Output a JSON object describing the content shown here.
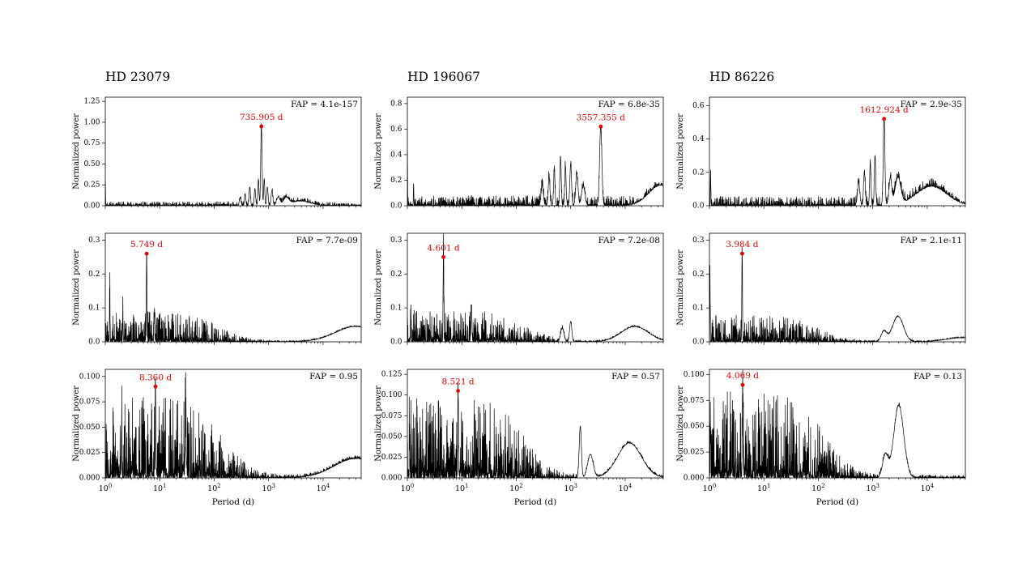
{
  "figure": {
    "ylabel": "Normalized power",
    "xlabel": "Period (d)",
    "x_tick_exponents": [
      0,
      1,
      2,
      3,
      4
    ],
    "xlim_log10": [
      0,
      4.7
    ],
    "colors": {
      "curve": "#000000",
      "peak": "#e60000",
      "background": "#ffffff",
      "text": "#000000"
    }
  },
  "chart_data": [
    {
      "type": "line",
      "star": "HD 23079",
      "row": 0,
      "col": 0,
      "fap_label": "FAP = 4.1e-157",
      "peak_label": "735.905 d",
      "peak": {
        "period_d": 735.905,
        "power": 0.95
      },
      "ylim": [
        0,
        1.3
      ],
      "ytick_vals": [
        0,
        0.25,
        0.5,
        0.75,
        1.0,
        1.25
      ],
      "ytick_labels": [
        "0.00",
        "0.25",
        "0.50",
        "0.75",
        "1.00",
        "1.25"
      ],
      "noise": {
        "amp": 0.05,
        "cut": 4.55,
        "floor": 0.002,
        "seed": 11
      },
      "features": [
        [
          1.0,
          0.3,
          0.004
        ],
        [
          735.905,
          0.95,
          0.012
        ],
        [
          450,
          0.22,
          0.012
        ],
        [
          560,
          0.2,
          0.012
        ],
        [
          650,
          0.3,
          0.01
        ],
        [
          830,
          0.32,
          0.01
        ],
        [
          950,
          0.22,
          0.012
        ],
        [
          1150,
          0.18,
          0.015
        ],
        [
          370,
          0.14,
          0.012
        ],
        [
          300,
          0.1,
          0.015
        ],
        [
          1500,
          0.1,
          0.03
        ],
        [
          2100,
          0.08,
          0.05
        ],
        [
          3800,
          0.055,
          0.18
        ]
      ]
    },
    {
      "type": "line",
      "star": "HD 196067",
      "row": 0,
      "col": 1,
      "fap_label": "FAP = 6.8e-35",
      "peak_label": "3557.355 d",
      "peak": {
        "period_d": 3557.355,
        "power": 0.62
      },
      "ylim": [
        0,
        0.85
      ],
      "ytick_vals": [
        0,
        0.2,
        0.4,
        0.6,
        0.8
      ],
      "ytick_labels": [
        "0.0",
        "0.2",
        "0.4",
        "0.6",
        "0.8"
      ],
      "noise": {
        "amp": 0.08,
        "cut": 4.55,
        "floor": 0.002,
        "seed": 22
      },
      "features": [
        [
          1.0,
          0.42,
          0.004
        ],
        [
          1.3,
          0.18,
          0.004
        ],
        [
          3557.355,
          0.62,
          0.02
        ],
        [
          650,
          0.38,
          0.012
        ],
        [
          800,
          0.3,
          0.012
        ],
        [
          1000,
          0.32,
          0.015
        ],
        [
          500,
          0.28,
          0.012
        ],
        [
          400,
          0.22,
          0.015
        ],
        [
          300,
          0.15,
          0.02
        ],
        [
          1300,
          0.25,
          0.02
        ],
        [
          1700,
          0.15,
          0.03
        ],
        [
          45000,
          0.16,
          0.22
        ]
      ]
    },
    {
      "type": "line",
      "star": "HD 86226",
      "row": 0,
      "col": 2,
      "fap_label": "FAP = 2.9e-35",
      "peak_label": "1612.924 d",
      "peak": {
        "period_d": 1612.924,
        "power": 0.52
      },
      "ylim": [
        0,
        0.65
      ],
      "ytick_vals": [
        0,
        0.2,
        0.4,
        0.6
      ],
      "ytick_labels": [
        "0.0",
        "0.2",
        "0.4",
        "0.6"
      ],
      "noise": {
        "amp": 0.055,
        "cut": 4.55,
        "floor": 0.002,
        "seed": 33
      },
      "features": [
        [
          1.05,
          0.2,
          0.004
        ],
        [
          1612.924,
          0.52,
          0.015
        ],
        [
          1100,
          0.3,
          0.012
        ],
        [
          900,
          0.26,
          0.012
        ],
        [
          700,
          0.2,
          0.015
        ],
        [
          550,
          0.14,
          0.02
        ],
        [
          2100,
          0.16,
          0.025
        ],
        [
          2900,
          0.16,
          0.05
        ],
        [
          12000,
          0.115,
          0.28
        ]
      ]
    },
    {
      "type": "line",
      "star": "HD 23079",
      "row": 1,
      "col": 0,
      "fap_label": "FAP = 7.7e-09",
      "peak_label": "5.749 d",
      "peak": {
        "period_d": 5.749,
        "power": 0.26
      },
      "ylim": [
        0,
        0.32
      ],
      "ytick_vals": [
        0,
        0.1,
        0.2,
        0.3
      ],
      "ytick_labels": [
        "0.0",
        "0.1",
        "0.2",
        "0.3"
      ],
      "noise": {
        "amp": 0.085,
        "cut": 2.1,
        "floor": 0.004,
        "seed": 44
      },
      "features": [
        [
          5.749,
          0.26,
          0.006
        ],
        [
          1.21,
          0.13,
          0.004
        ],
        [
          2.1,
          0.08,
          0.005
        ],
        [
          8,
          0.1,
          0.006
        ],
        [
          40000,
          0.045,
          0.38
        ]
      ]
    },
    {
      "type": "line",
      "star": "HD 196067",
      "row": 1,
      "col": 1,
      "fap_label": "FAP = 7.2e-08",
      "peak_label": "4.601 d",
      "peak": {
        "period_d": 4.601,
        "power": 0.25
      },
      "ylim": [
        0,
        0.32
      ],
      "ytick_vals": [
        0,
        0.1,
        0.2,
        0.3
      ],
      "ytick_labels": [
        "0.0",
        "0.1",
        "0.2",
        "0.3"
      ],
      "noise": {
        "amp": 0.09,
        "cut": 2.2,
        "floor": 0.004,
        "seed": 55
      },
      "features": [
        [
          4.601,
          0.25,
          0.006
        ],
        [
          1.15,
          0.1,
          0.004
        ],
        [
          15,
          0.11,
          0.008
        ],
        [
          1000,
          0.06,
          0.02
        ],
        [
          700,
          0.04,
          0.03
        ],
        [
          15000,
          0.045,
          0.25
        ]
      ]
    },
    {
      "type": "line",
      "star": "HD 86226",
      "row": 1,
      "col": 2,
      "fap_label": "FAP = 2.1e-11",
      "peak_label": "3.984 d",
      "peak": {
        "period_d": 3.984,
        "power": 0.26
      },
      "ylim": [
        0,
        0.32
      ],
      "ytick_vals": [
        0,
        0.1,
        0.2,
        0.3
      ],
      "ytick_labels": [
        "0.0",
        "0.1",
        "0.2",
        "0.3"
      ],
      "noise": {
        "amp": 0.075,
        "cut": 2.0,
        "floor": 0.004,
        "seed": 66
      },
      "features": [
        [
          3.984,
          0.26,
          0.006
        ],
        [
          1.02,
          0.19,
          0.004
        ],
        [
          2900,
          0.075,
          0.1
        ],
        [
          1600,
          0.03,
          0.05
        ],
        [
          45000,
          0.012,
          0.3
        ]
      ]
    },
    {
      "type": "line",
      "star": "HD 23079",
      "row": 2,
      "col": 0,
      "fap_label": "FAP = 0.95",
      "peak_label": "8.360 d",
      "peak": {
        "period_d": 8.36,
        "power": 0.09
      },
      "ylim": [
        0,
        0.107
      ],
      "ytick_vals": [
        0,
        0.025,
        0.05,
        0.075,
        0.1
      ],
      "ytick_labels": [
        "0.000",
        "0.025",
        "0.050",
        "0.075",
        "0.100"
      ],
      "noise": {
        "amp": 0.078,
        "cut": 2.15,
        "floor": 0.003,
        "seed": 77
      },
      "features": [
        [
          8.36,
          0.09,
          0.006
        ],
        [
          40000,
          0.019,
          0.4
        ],
        [
          2.0,
          0.05,
          0.005
        ],
        [
          30,
          0.04,
          0.01
        ]
      ]
    },
    {
      "type": "line",
      "star": "HD 196067",
      "row": 2,
      "col": 1,
      "fap_label": "FAP = 0.57",
      "peak_label": "8.521 d",
      "peak": {
        "period_d": 8.521,
        "power": 0.105
      },
      "ylim": [
        0,
        0.131
      ],
      "ytick_vals": [
        0,
        0.025,
        0.05,
        0.075,
        0.1,
        0.125
      ],
      "ytick_labels": [
        "0.000",
        "0.025",
        "0.050",
        "0.075",
        "0.100",
        "0.125"
      ],
      "noise": {
        "amp": 0.095,
        "cut": 2.15,
        "floor": 0.003,
        "seed": 88
      },
      "features": [
        [
          8.521,
          0.105,
          0.006
        ],
        [
          1500,
          0.062,
          0.02
        ],
        [
          2300,
          0.028,
          0.05
        ],
        [
          12000,
          0.042,
          0.22
        ],
        [
          1.1,
          0.05,
          0.004
        ]
      ]
    },
    {
      "type": "line",
      "star": "HD 86226",
      "row": 2,
      "col": 2,
      "fap_label": "FAP = 0.13",
      "peak_label": "4.069 d",
      "peak": {
        "period_d": 4.069,
        "power": 0.09
      },
      "ylim": [
        0,
        0.105
      ],
      "ytick_vals": [
        0,
        0.025,
        0.05,
        0.075,
        0.1
      ],
      "ytick_labels": [
        "0.000",
        "0.025",
        "0.050",
        "0.075",
        "0.100"
      ],
      "noise": {
        "amp": 0.082,
        "cut": 2.1,
        "floor": 0.003,
        "seed": 99
      },
      "features": [
        [
          4.069,
          0.09,
          0.006
        ],
        [
          3000,
          0.07,
          0.09
        ],
        [
          1700,
          0.022,
          0.05
        ],
        [
          1.05,
          0.05,
          0.004
        ]
      ]
    }
  ]
}
